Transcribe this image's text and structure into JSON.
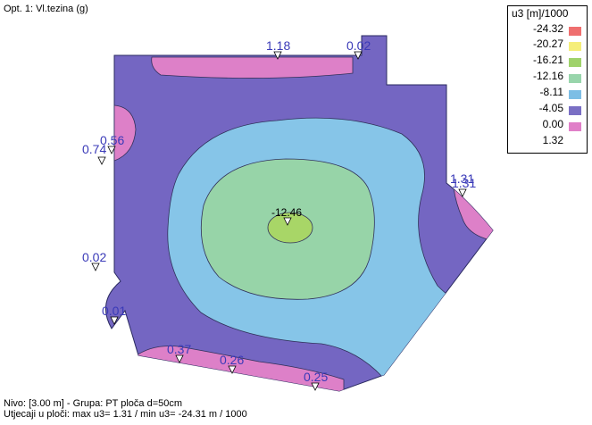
{
  "title": "Opt. 1: Vl.tezina (g)",
  "legend": {
    "title": "u3 [m]/1000",
    "entries": [
      {
        "label": "-24.32",
        "color": "#ef6f6f"
      },
      {
        "label": "-20.27",
        "color": "#f5ee7a"
      },
      {
        "label": "-16.21",
        "color": "#9fd26a"
      },
      {
        "label": "-12.16",
        "color": "#98d5ab"
      },
      {
        "label": "-8.11",
        "color": "#7dbee5"
      },
      {
        "label": "-4.05",
        "color": "#7a6fc4"
      },
      {
        "label": "0.00",
        "color": "#e07fc8"
      },
      {
        "label": "1.32",
        "color": ""
      }
    ]
  },
  "colors": {
    "base": "#7466c2",
    "pink": "#dd80c8",
    "blue": "#86c5e8",
    "green": "#97d4a8",
    "lime": "#a8d667",
    "label": "#3a3ab8"
  },
  "point_labels": [
    "1.18",
    "0.02",
    "0.74",
    "0.56",
    "1.31",
    "1.31",
    "-12.46",
    "0.02",
    "0.01",
    "0.37",
    "0.26",
    "0.25"
  ],
  "footer": {
    "line1": "Nivo: [3.00 m] - Grupa: PT ploča d=50cm",
    "line2": "Utjecaji u ploči: max u3= 1.31 / min u3= -24.31 m / 1000"
  }
}
